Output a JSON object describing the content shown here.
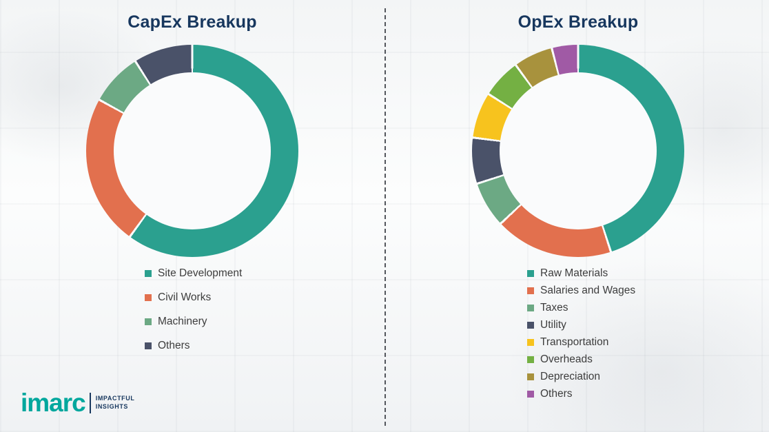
{
  "palette": {
    "title_navy": "#17375e",
    "legend_text": "#3d3d3d",
    "divider_gray": "#53565c",
    "brand_teal": "#00a79d"
  },
  "divider": {
    "style": "vertical-dashed"
  },
  "logo": {
    "wordmark": "imarc",
    "tagline_line1": "IMPACTFUL",
    "tagline_line2": "INSIGHTS"
  },
  "chart_data": [
    {
      "type": "pie",
      "subtype": "donut",
      "title": "CapEx Breakup",
      "legend_position": "bottom",
      "data_labels": false,
      "segments": [
        {
          "label": "Site Development",
          "value": 60,
          "color": "#2ba08f"
        },
        {
          "label": "Civil Works",
          "value": 23,
          "color": "#e2704e"
        },
        {
          "label": "Machinery",
          "value": 8,
          "color": "#6ca984"
        },
        {
          "label": "Others",
          "value": 9,
          "color": "#4a5269"
        }
      ]
    },
    {
      "type": "pie",
      "subtype": "donut",
      "title": "OpEx Breakup",
      "legend_position": "bottom",
      "data_labels": false,
      "segments": [
        {
          "label": "Raw Materials",
          "value": 45,
          "color": "#2ba08f"
        },
        {
          "label": "Salaries and Wages",
          "value": 18,
          "color": "#e2704e"
        },
        {
          "label": "Taxes",
          "value": 7,
          "color": "#6ca984"
        },
        {
          "label": "Utility",
          "value": 7,
          "color": "#4a5269"
        },
        {
          "label": "Transportation",
          "value": 7,
          "color": "#f7c31e"
        },
        {
          "label": "Overheads",
          "value": 6,
          "color": "#74b043"
        },
        {
          "label": "Depreciation",
          "value": 6,
          "color": "#a8923d"
        },
        {
          "label": "Others",
          "value": 4,
          "color": "#a05aa5"
        }
      ]
    }
  ]
}
